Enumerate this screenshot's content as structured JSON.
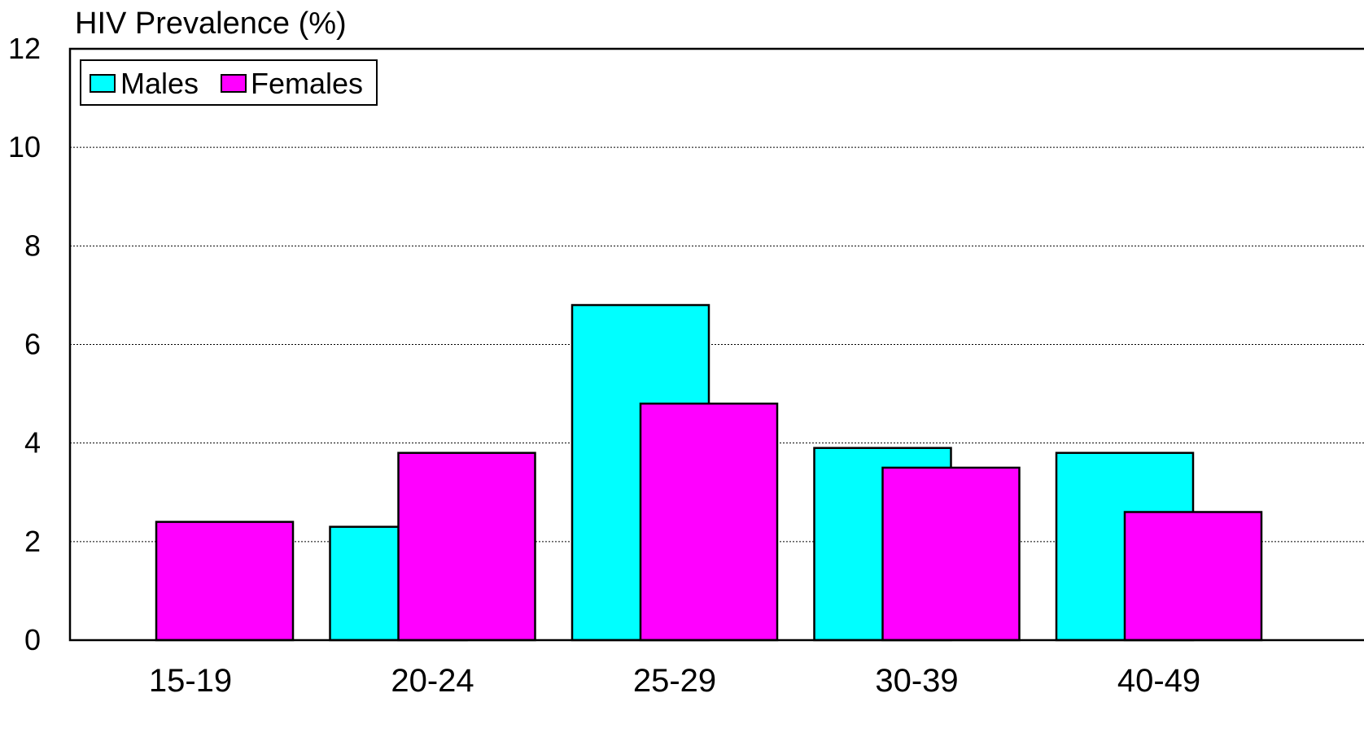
{
  "chart_data": {
    "type": "bar",
    "title": "HIV Prevalence (%)",
    "xlabel": "",
    "ylabel": "",
    "categories": [
      "15-19",
      "20-24",
      "25-29",
      "30-39",
      "40-49"
    ],
    "series": [
      {
        "name": "Males",
        "color": "#00ffff",
        "values": [
          0.0,
          2.3,
          6.8,
          3.9,
          3.8
        ]
      },
      {
        "name": "Females",
        "color": "#ff00ff",
        "values": [
          2.4,
          3.8,
          4.8,
          3.5,
          2.6
        ]
      }
    ],
    "ylim": [
      0,
      12
    ],
    "yticks": [
      "0",
      "2",
      "4",
      "6",
      "8",
      "10",
      "12"
    ],
    "grid": true,
    "legend_position": "top-left"
  }
}
